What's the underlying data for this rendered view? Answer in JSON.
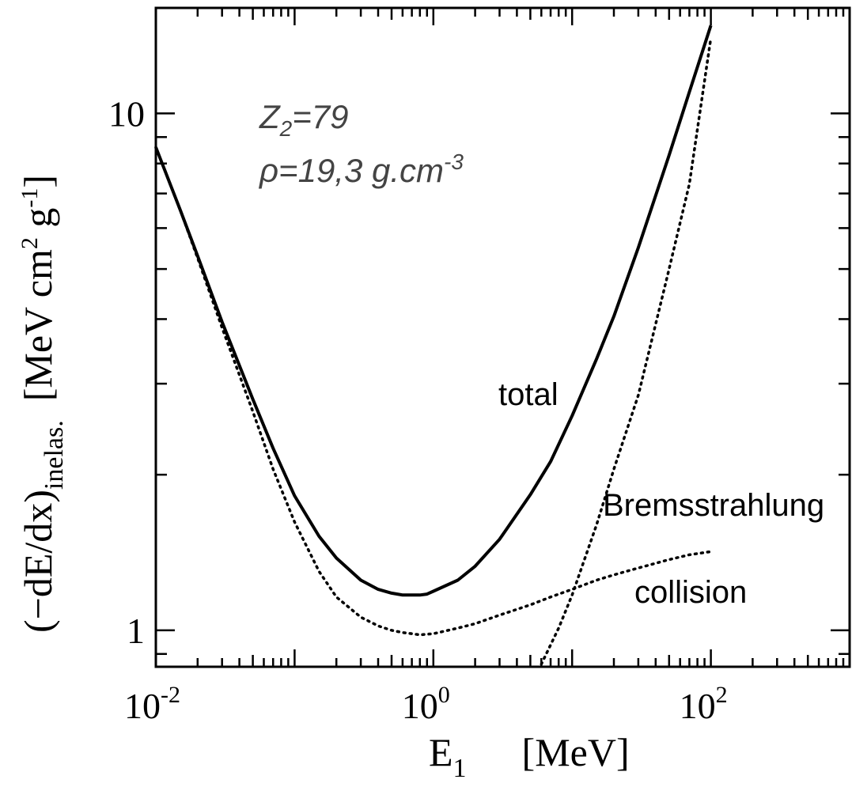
{
  "chart_data": {
    "type": "line",
    "xscale": "log",
    "yscale": "log",
    "xlim": [
      0.01,
      1000
    ],
    "ylim": [
      0.85,
      16
    ],
    "x_ticks": [
      {
        "value": 0.01,
        "base": "10",
        "exp": "-2"
      },
      {
        "value": 1,
        "base": "10",
        "exp": "0"
      },
      {
        "value": 100,
        "base": "10",
        "exp": "2"
      }
    ],
    "y_ticks": [
      {
        "value": 1,
        "label": "1"
      },
      {
        "value": 10,
        "label": "10"
      }
    ],
    "xlabel": {
      "main": "E",
      "sub": "1",
      "unit": "[MeV]"
    },
    "ylabel": {
      "main": "(−dE/dx)",
      "sub": "inelas.",
      "unit_a": "[MeV cm",
      "unit_a_sup": "2",
      "unit_b": " g",
      "unit_b_sup": "-1",
      "unit_c": "]"
    },
    "annotation": {
      "line1_main": "Z",
      "line1_sub": "2",
      "line1_rest": "=79",
      "line2_main": "ρ=19,3 g.cm",
      "line2_sup": "-3"
    },
    "grid": false,
    "series": [
      {
        "name": "total",
        "style": "solid",
        "x": [
          0.01,
          0.015,
          0.02,
          0.03,
          0.05,
          0.07,
          0.1,
          0.15,
          0.2,
          0.3,
          0.4,
          0.5,
          0.6,
          0.7,
          0.8,
          0.9,
          1,
          1.5,
          2,
          3,
          5,
          7,
          10,
          15,
          20,
          30,
          50,
          70,
          100
        ],
        "y": [
          8.6,
          6.5,
          5.3,
          3.95,
          2.8,
          2.25,
          1.82,
          1.52,
          1.38,
          1.25,
          1.2,
          1.18,
          1.17,
          1.17,
          1.17,
          1.175,
          1.19,
          1.25,
          1.33,
          1.5,
          1.83,
          2.12,
          2.6,
          3.35,
          4.05,
          5.5,
          8.3,
          11.0,
          14.8
        ]
      },
      {
        "name": "collision",
        "style": "dotted",
        "x": [
          0.01,
          0.015,
          0.02,
          0.03,
          0.05,
          0.07,
          0.1,
          0.15,
          0.2,
          0.3,
          0.4,
          0.5,
          0.6,
          0.7,
          0.8,
          1,
          1.5,
          2,
          3,
          5,
          7,
          10,
          15,
          20,
          30,
          50,
          70,
          100
        ],
        "y": [
          8.6,
          6.5,
          5.25,
          3.85,
          2.65,
          2.05,
          1.62,
          1.3,
          1.16,
          1.06,
          1.02,
          1.0,
          0.99,
          0.985,
          0.98,
          0.985,
          1.01,
          1.03,
          1.07,
          1.12,
          1.16,
          1.2,
          1.25,
          1.28,
          1.32,
          1.37,
          1.4,
          1.42
        ]
      },
      {
        "name": "Bremsstrahlung",
        "style": "dotted",
        "x": [
          6,
          8,
          10,
          15,
          20,
          30,
          50,
          70,
          100
        ],
        "y": [
          0.86,
          1.01,
          1.17,
          1.6,
          2.05,
          2.85,
          5.0,
          7.3,
          14.0
        ]
      }
    ],
    "series_labels": [
      "total",
      "Bremsstrahlung",
      "collision"
    ]
  }
}
